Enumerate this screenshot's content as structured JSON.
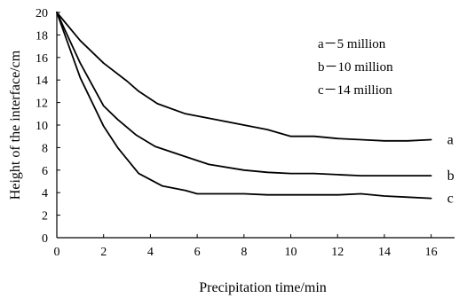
{
  "chart_data": {
    "type": "line",
    "xlabel": "Precipitation time/min",
    "ylabel": "Height of the interface/cm",
    "xlim": [
      0,
      17
    ],
    "ylim": [
      0,
      20
    ],
    "x_ticks": [
      0,
      2,
      4,
      6,
      8,
      10,
      12,
      14,
      16
    ],
    "y_ticks": [
      0,
      2,
      4,
      6,
      8,
      10,
      12,
      14,
      16,
      18,
      20
    ],
    "grid": false,
    "legend": {
      "placement": "upper-right",
      "entries": [
        "a－5 million",
        "b－10 million",
        "c－14 million"
      ]
    },
    "series": [
      {
        "end_label": "a",
        "x": [
          0,
          1,
          2,
          3,
          3.5,
          4.3,
          5.5,
          7,
          8,
          9,
          10,
          11,
          12,
          13,
          14,
          15,
          16
        ],
        "y": [
          20,
          17.5,
          15.5,
          13.9,
          13.0,
          11.9,
          11.0,
          10.4,
          10.0,
          9.6,
          9.0,
          9.0,
          8.8,
          8.7,
          8.6,
          8.6,
          8.7
        ]
      },
      {
        "end_label": "b",
        "x": [
          0,
          1,
          2,
          2.6,
          3.4,
          4.2,
          5.5,
          6.5,
          8,
          9,
          10,
          11,
          12,
          13,
          14,
          15,
          16
        ],
        "y": [
          20,
          15.5,
          11.7,
          10.5,
          9.1,
          8.1,
          7.2,
          6.5,
          6.0,
          5.8,
          5.7,
          5.7,
          5.6,
          5.5,
          5.5,
          5.5,
          5.5
        ]
      },
      {
        "end_label": "c",
        "x": [
          0,
          1,
          2,
          2.6,
          3.5,
          4.5,
          5.5,
          6,
          7,
          8,
          9,
          10,
          11,
          12,
          13,
          14,
          15,
          16
        ],
        "y": [
          20,
          14.2,
          9.9,
          8.0,
          5.7,
          4.6,
          4.2,
          3.9,
          3.9,
          3.9,
          3.8,
          3.8,
          3.8,
          3.8,
          3.9,
          3.7,
          3.6,
          3.5
        ]
      }
    ]
  }
}
